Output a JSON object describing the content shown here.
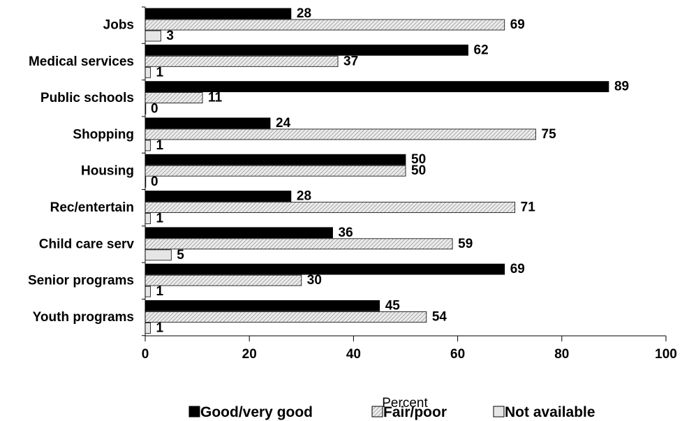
{
  "chart_data": {
    "type": "bar",
    "orientation": "horizontal",
    "categories": [
      "Jobs",
      "Medical services",
      "Public schools",
      "Shopping",
      "Housing",
      "Rec/entertain",
      "Child care serv",
      "Senior programs",
      "Youth programs"
    ],
    "series": [
      {
        "name": "Good/very good",
        "values": [
          28,
          62,
          89,
          24,
          50,
          28,
          36,
          69,
          45
        ],
        "color": "#000000",
        "pattern": "solid"
      },
      {
        "name": "Fair/poor",
        "values": [
          69,
          37,
          11,
          75,
          50,
          71,
          59,
          30,
          54
        ],
        "color": "#cfcfcf",
        "pattern": "diagonal-hatch"
      },
      {
        "name": "Not available",
        "values": [
          3,
          1,
          0,
          1,
          0,
          1,
          5,
          1,
          1
        ],
        "color": "#e6e6e6",
        "pattern": "solid"
      }
    ],
    "xlabel": "Percent",
    "xlim": [
      0,
      100
    ],
    "xticks": [
      0,
      20,
      40,
      60,
      80,
      100
    ],
    "grid": false,
    "legend_position": "bottom",
    "data_labels": true
  }
}
